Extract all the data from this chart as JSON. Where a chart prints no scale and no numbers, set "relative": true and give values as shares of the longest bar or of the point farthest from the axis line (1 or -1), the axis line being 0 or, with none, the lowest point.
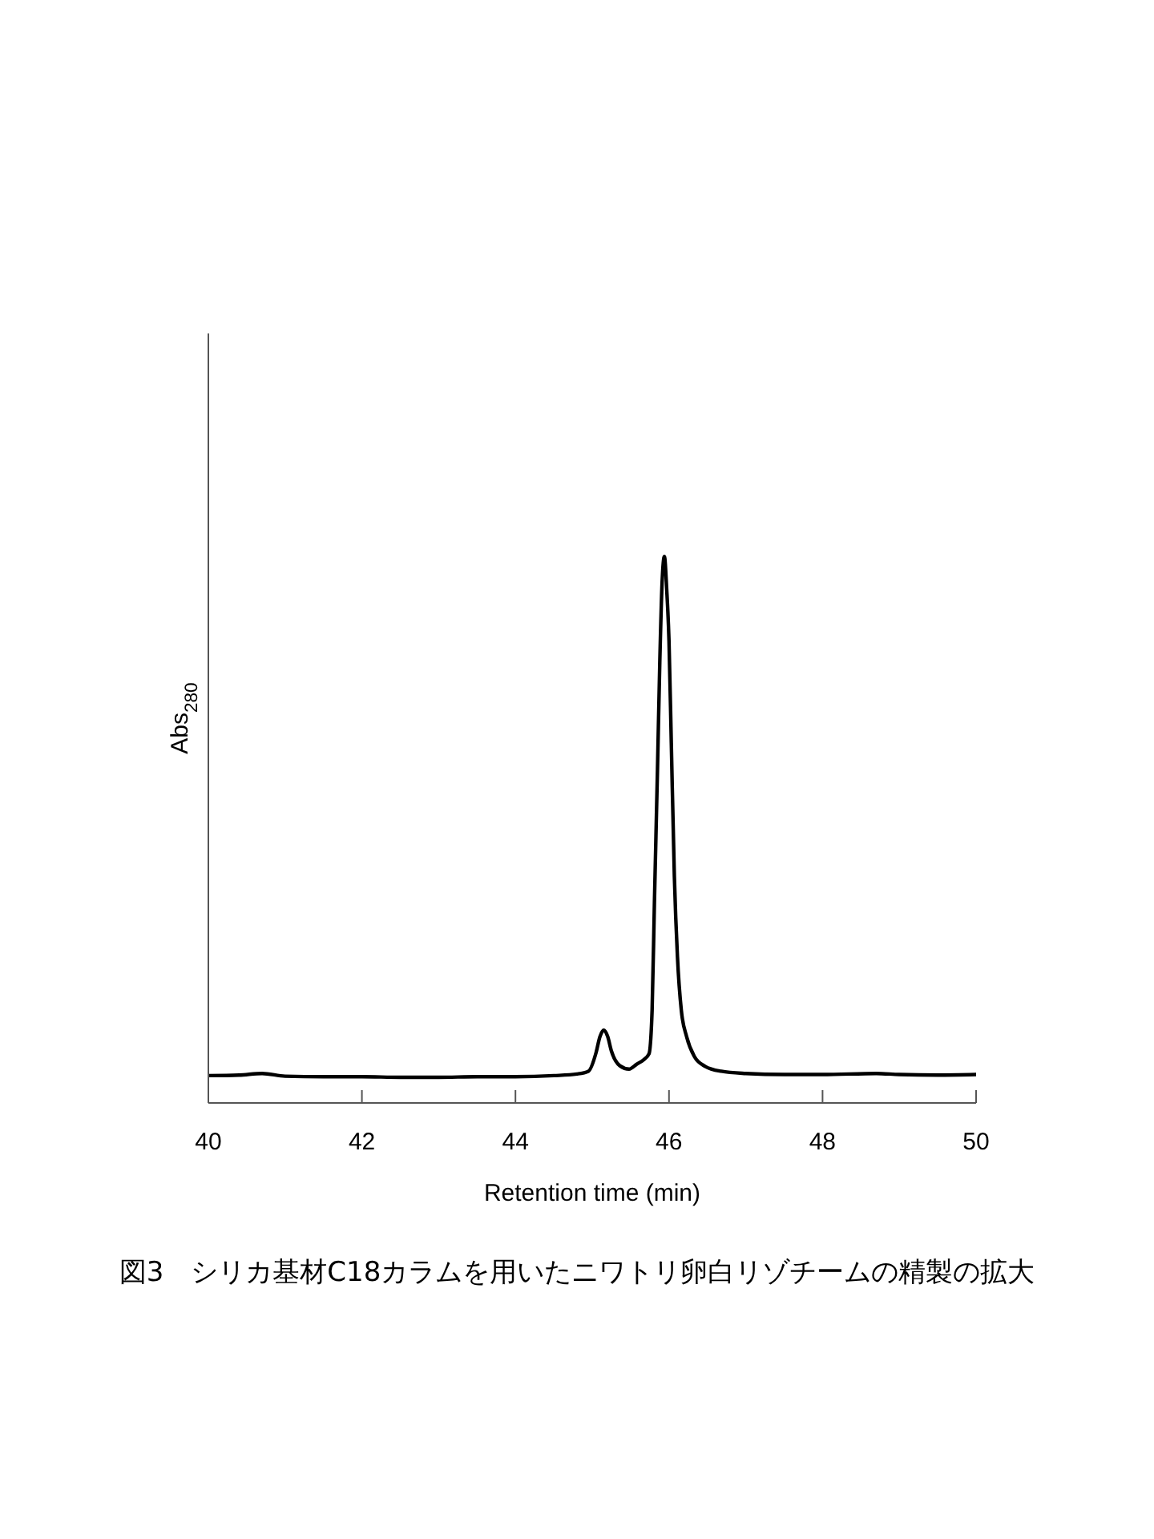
{
  "chart_data": {
    "type": "line",
    "relative": true,
    "xlabel": "Retention time (min)",
    "ylabel": "Abs$_{280}$",
    "annotations": [
      "図3　シリカ基材C18カラムを用いたニワトリ卵白リゾチームの精製の拡大"
    ],
    "x": [
      40.0,
      40.4,
      40.7,
      41.0,
      41.5,
      42.0,
      42.5,
      43.0,
      43.5,
      44.0,
      44.5,
      44.8,
      44.95,
      45.05,
      45.1,
      45.15,
      45.2,
      45.25,
      45.36,
      45.48,
      45.58,
      45.67,
      45.74,
      45.78,
      45.81,
      45.85,
      45.88,
      45.91,
      45.94,
      45.97,
      46.0,
      46.03,
      46.07,
      46.11,
      46.16,
      46.23,
      46.33,
      46.47,
      46.68,
      47.0,
      47.5,
      48.0,
      48.7,
      49.0,
      49.5,
      50.0
    ],
    "values": [
      0.05,
      0.051,
      0.054,
      0.049,
      0.048,
      0.048,
      0.047,
      0.047,
      0.048,
      0.048,
      0.05,
      0.053,
      0.058,
      0.092,
      0.121,
      0.133,
      0.122,
      0.095,
      0.068,
      0.062,
      0.071,
      0.079,
      0.09,
      0.17,
      0.366,
      0.61,
      0.806,
      0.952,
      1.0,
      0.94,
      0.845,
      0.659,
      0.414,
      0.268,
      0.17,
      0.121,
      0.085,
      0.067,
      0.058,
      0.054,
      0.052,
      0.052,
      0.054,
      0.052,
      0.051,
      0.052
    ],
    "color": "#000000",
    "xlim": [
      40,
      50
    ],
    "xticks": [
      40,
      42,
      44,
      46,
      48,
      50
    ]
  }
}
